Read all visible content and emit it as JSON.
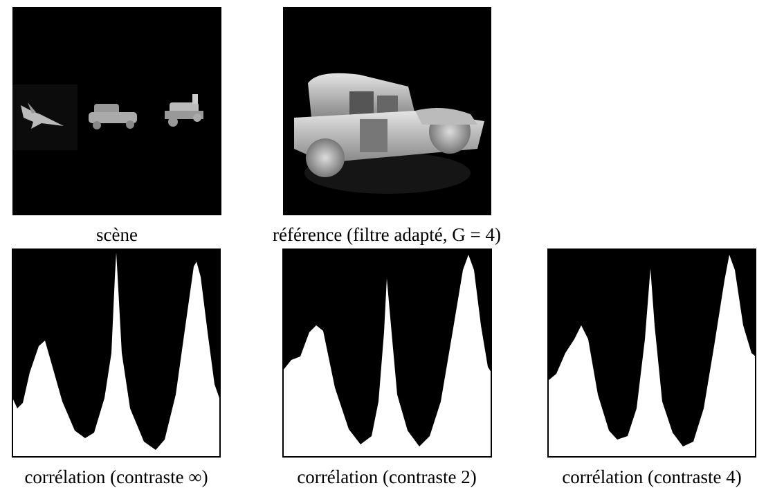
{
  "figure": {
    "panels": [
      {
        "caption": "scène"
      },
      {
        "caption": "référence (filtre adapté, G = 4)"
      },
      {
        "caption": "corrélation (contraste ∞)"
      },
      {
        "caption": "corrélation (contraste 2)"
      },
      {
        "caption": "corrélation (contraste 4)"
      }
    ]
  }
}
